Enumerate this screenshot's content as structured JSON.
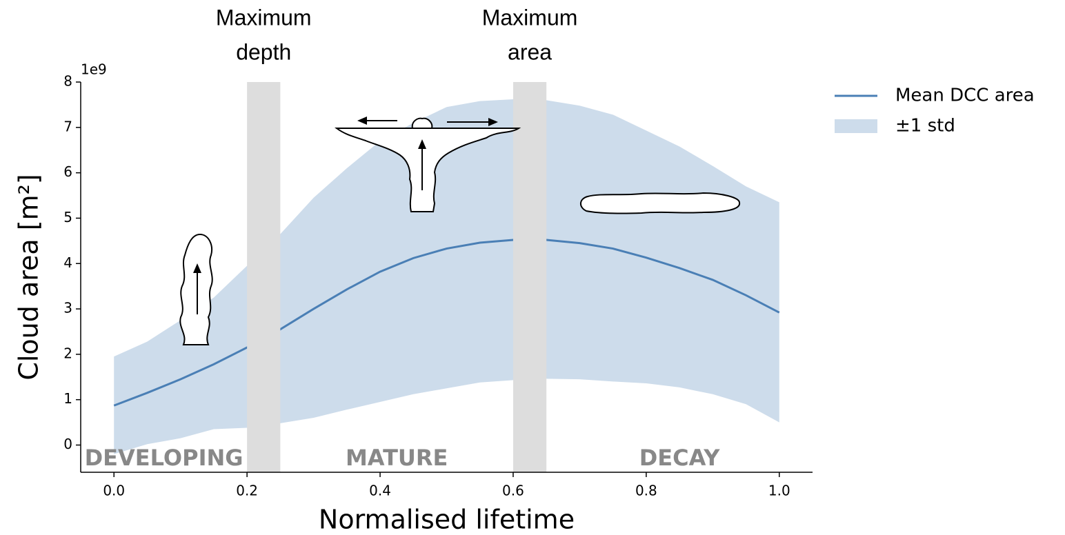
{
  "chart_data": {
    "type": "line",
    "xlabel": "Normalised lifetime",
    "ylabel": "Cloud area [m²]",
    "y_offset_label": "1e9",
    "x": [
      0,
      0.05,
      0.1,
      0.15,
      0.2,
      0.25,
      0.3,
      0.35,
      0.4,
      0.45,
      0.5,
      0.55,
      0.6,
      0.65,
      0.7,
      0.75,
      0.8,
      0.85,
      0.9,
      0.95,
      1.0
    ],
    "series": [
      {
        "name": "Mean DCC area",
        "color": "#4a7fb5",
        "values": [
          0.87,
          1.15,
          1.45,
          1.78,
          2.15,
          2.55,
          3.0,
          3.43,
          3.82,
          4.12,
          4.33,
          4.46,
          4.52,
          4.52,
          4.45,
          4.33,
          4.13,
          3.9,
          3.64,
          3.3,
          2.92
        ]
      }
    ],
    "band": {
      "name": "±1 std",
      "color": "#cddceb",
      "upper": [
        1.95,
        2.28,
        2.75,
        3.25,
        3.95,
        4.65,
        5.45,
        6.1,
        6.7,
        7.1,
        7.45,
        7.58,
        7.62,
        7.6,
        7.48,
        7.28,
        6.93,
        6.58,
        6.15,
        5.7,
        5.35
      ],
      "lower": [
        -0.2,
        0.02,
        0.15,
        0.35,
        0.38,
        0.48,
        0.6,
        0.78,
        0.95,
        1.12,
        1.25,
        1.38,
        1.43,
        1.46,
        1.45,
        1.4,
        1.36,
        1.27,
        1.12,
        0.9,
        0.5
      ]
    },
    "markers": [
      {
        "start": 0.2,
        "end": 0.25,
        "label": [
          "Maximum",
          "depth"
        ]
      },
      {
        "start": 0.6,
        "end": 0.65,
        "label": [
          "Maximum",
          "area"
        ]
      }
    ],
    "marker_color": "#dddddd",
    "phases": [
      "DEVELOPING",
      "MATURE",
      "DECAY"
    ],
    "xlim": [
      -0.05,
      1.05
    ],
    "ylim": [
      -0.6,
      8
    ],
    "xticks": [
      {
        "value": 0,
        "label": "0.0"
      },
      0.2,
      0.4,
      0.6,
      0.8,
      {
        "value": 1,
        "label": "1.0"
      }
    ],
    "yticks": [
      0,
      1,
      2,
      3,
      4,
      5,
      6,
      7,
      8
    ],
    "grid": false
  }
}
